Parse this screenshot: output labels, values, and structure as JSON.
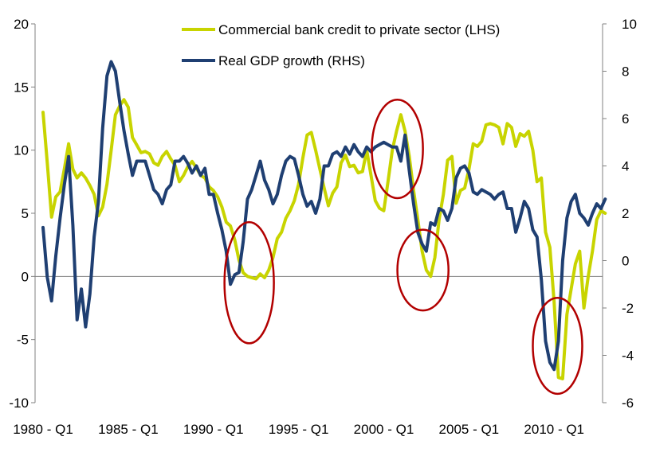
{
  "chart_data": {
    "type": "line",
    "title": "",
    "xlabel": "",
    "ylabel_left": "",
    "ylabel_right": "",
    "x_start_year": 1980,
    "x_end_year": 2012.5,
    "x_tick_labels": [
      {
        "year": 1980,
        "label": "1980 - Q1"
      },
      {
        "year": 1985,
        "label": "1985 - Q1"
      },
      {
        "year": 1990,
        "label": "1990 - Q1"
      },
      {
        "year": 1995,
        "label": "1995 - Q1"
      },
      {
        "year": 2000,
        "label": "2000 - Q1"
      },
      {
        "year": 2005,
        "label": "2005 - Q1"
      },
      {
        "year": 2010,
        "label": "2010 - Q1"
      }
    ],
    "y_left": {
      "min": -10,
      "max": 20,
      "ticks": [
        "20",
        "15",
        "10",
        "5",
        "0",
        "-5",
        "-10"
      ],
      "tick_values": [
        20,
        15,
        10,
        5,
        0,
        -5,
        -10
      ]
    },
    "y_right": {
      "min": -6,
      "max": 10,
      "ticks": [
        "10",
        "8",
        "6",
        "4",
        "2",
        "0",
        "-2",
        "-4",
        "-6"
      ],
      "tick_values": [
        10,
        8,
        6,
        4,
        2,
        0,
        -2,
        -4,
        -6
      ]
    },
    "legend": {
      "position": "top-center"
    },
    "series": [
      {
        "name": "Commercial bank credit to private sector (LHS)",
        "axis": "left",
        "color": "#c8d400",
        "points": [
          [
            1980.0,
            13.0
          ],
          [
            1980.25,
            9.0
          ],
          [
            1980.5,
            4.7
          ],
          [
            1980.75,
            6.3
          ],
          [
            1981.0,
            6.7
          ],
          [
            1981.25,
            8.5
          ],
          [
            1981.5,
            10.5
          ],
          [
            1981.75,
            8.5
          ],
          [
            1982.0,
            7.8
          ],
          [
            1982.25,
            8.2
          ],
          [
            1982.5,
            7.8
          ],
          [
            1982.75,
            7.2
          ],
          [
            1983.0,
            6.5
          ],
          [
            1983.25,
            4.8
          ],
          [
            1983.5,
            5.5
          ],
          [
            1983.75,
            7.3
          ],
          [
            1984.0,
            10.0
          ],
          [
            1984.25,
            12.8
          ],
          [
            1984.5,
            13.5
          ],
          [
            1984.75,
            14.0
          ],
          [
            1985.0,
            13.4
          ],
          [
            1985.25,
            11.0
          ],
          [
            1985.5,
            10.4
          ],
          [
            1985.75,
            9.8
          ],
          [
            1986.0,
            9.9
          ],
          [
            1986.25,
            9.7
          ],
          [
            1986.5,
            9.0
          ],
          [
            1986.75,
            8.8
          ],
          [
            1987.0,
            9.5
          ],
          [
            1987.25,
            9.9
          ],
          [
            1987.5,
            9.3
          ],
          [
            1987.75,
            8.8
          ],
          [
            1988.0,
            7.5
          ],
          [
            1988.25,
            8.0
          ],
          [
            1988.5,
            8.7
          ],
          [
            1988.75,
            9.1
          ],
          [
            1989.0,
            8.6
          ],
          [
            1989.25,
            8.0
          ],
          [
            1989.5,
            7.8
          ],
          [
            1989.75,
            7.1
          ],
          [
            1990.0,
            6.8
          ],
          [
            1990.25,
            6.3
          ],
          [
            1990.5,
            5.5
          ],
          [
            1990.75,
            4.3
          ],
          [
            1991.0,
            4.0
          ],
          [
            1991.25,
            2.9
          ],
          [
            1991.5,
            1.3
          ],
          [
            1991.75,
            0.3
          ],
          [
            1992.0,
            0.0
          ],
          [
            1992.25,
            -0.1
          ],
          [
            1992.5,
            -0.2
          ],
          [
            1992.75,
            0.2
          ],
          [
            1993.0,
            -0.1
          ],
          [
            1993.25,
            0.5
          ],
          [
            1993.5,
            1.5
          ],
          [
            1993.75,
            3.0
          ],
          [
            1994.0,
            3.5
          ],
          [
            1994.25,
            4.6
          ],
          [
            1994.5,
            5.2
          ],
          [
            1994.75,
            6.0
          ],
          [
            1995.0,
            7.3
          ],
          [
            1995.25,
            9.4
          ],
          [
            1995.5,
            11.2
          ],
          [
            1995.75,
            11.4
          ],
          [
            1996.0,
            10.0
          ],
          [
            1996.25,
            8.5
          ],
          [
            1996.5,
            7.0
          ],
          [
            1996.75,
            5.6
          ],
          [
            1997.0,
            6.6
          ],
          [
            1997.25,
            7.1
          ],
          [
            1997.5,
            9.0
          ],
          [
            1997.75,
            9.6
          ],
          [
            1998.0,
            8.7
          ],
          [
            1998.25,
            8.8
          ],
          [
            1998.5,
            8.2
          ],
          [
            1998.75,
            8.3
          ],
          [
            1999.0,
            10.0
          ],
          [
            1999.25,
            8.0
          ],
          [
            1999.5,
            6.0
          ],
          [
            1999.75,
            5.4
          ],
          [
            2000.0,
            5.2
          ],
          [
            2000.25,
            7.5
          ],
          [
            2000.5,
            10.0
          ],
          [
            2000.75,
            11.5
          ],
          [
            2001.0,
            12.8
          ],
          [
            2001.25,
            11.5
          ],
          [
            2001.5,
            9.5
          ],
          [
            2001.75,
            6.8
          ],
          [
            2002.0,
            4.5
          ],
          [
            2002.25,
            2.0
          ],
          [
            2002.5,
            0.5
          ],
          [
            2002.75,
            0.0
          ],
          [
            2003.0,
            1.5
          ],
          [
            2003.25,
            4.5
          ],
          [
            2003.5,
            6.5
          ],
          [
            2003.75,
            9.2
          ],
          [
            2004.0,
            9.5
          ],
          [
            2004.25,
            5.8
          ],
          [
            2004.5,
            6.8
          ],
          [
            2004.75,
            7.0
          ],
          [
            2005.0,
            8.5
          ],
          [
            2005.25,
            10.5
          ],
          [
            2005.5,
            10.3
          ],
          [
            2005.75,
            10.7
          ],
          [
            2006.0,
            12.0
          ],
          [
            2006.25,
            12.1
          ],
          [
            2006.5,
            12.0
          ],
          [
            2006.75,
            11.8
          ],
          [
            2007.0,
            10.5
          ],
          [
            2007.25,
            12.1
          ],
          [
            2007.5,
            11.8
          ],
          [
            2007.75,
            10.3
          ],
          [
            2008.0,
            11.3
          ],
          [
            2008.25,
            11.1
          ],
          [
            2008.5,
            11.5
          ],
          [
            2008.75,
            10.0
          ],
          [
            2009.0,
            7.5
          ],
          [
            2009.25,
            7.8
          ],
          [
            2009.5,
            3.5
          ],
          [
            2009.75,
            2.3
          ],
          [
            2010.0,
            -2.0
          ],
          [
            2010.25,
            -8.0
          ],
          [
            2010.5,
            -8.1
          ],
          [
            2010.75,
            -3.0
          ],
          [
            2011.0,
            -1.0
          ],
          [
            2011.25,
            1.0
          ],
          [
            2011.5,
            2.0
          ],
          [
            2011.75,
            -2.5
          ],
          [
            2012.0,
            0.0
          ],
          [
            2012.25,
            2.0
          ],
          [
            2012.5,
            4.5
          ],
          [
            2012.75,
            5.2
          ],
          [
            2013.0,
            5.0
          ]
        ]
      },
      {
        "name": "Real GDP growth (RHS)",
        "axis": "right",
        "color": "#1f3f72",
        "points": [
          [
            1980.0,
            1.4
          ],
          [
            1980.25,
            -0.7
          ],
          [
            1980.5,
            -1.7
          ],
          [
            1980.75,
            0.2
          ],
          [
            1981.0,
            1.8
          ],
          [
            1981.25,
            3.2
          ],
          [
            1981.5,
            4.4
          ],
          [
            1981.75,
            1.5
          ],
          [
            1982.0,
            -2.5
          ],
          [
            1982.25,
            -1.2
          ],
          [
            1982.5,
            -2.8
          ],
          [
            1982.75,
            -1.4
          ],
          [
            1983.0,
            1.0
          ],
          [
            1983.25,
            2.5
          ],
          [
            1983.5,
            5.6
          ],
          [
            1983.75,
            7.8
          ],
          [
            1984.0,
            8.4
          ],
          [
            1984.25,
            8.0
          ],
          [
            1984.5,
            6.7
          ],
          [
            1984.75,
            5.5
          ],
          [
            1985.0,
            4.5
          ],
          [
            1985.25,
            3.6
          ],
          [
            1985.5,
            4.2
          ],
          [
            1985.75,
            4.2
          ],
          [
            1986.0,
            4.2
          ],
          [
            1986.25,
            3.6
          ],
          [
            1986.5,
            3.0
          ],
          [
            1986.75,
            2.8
          ],
          [
            1987.0,
            2.4
          ],
          [
            1987.25,
            3.0
          ],
          [
            1987.5,
            3.2
          ],
          [
            1987.75,
            4.2
          ],
          [
            1988.0,
            4.2
          ],
          [
            1988.25,
            4.4
          ],
          [
            1988.5,
            4.1
          ],
          [
            1988.75,
            3.7
          ],
          [
            1989.0,
            4.0
          ],
          [
            1989.25,
            3.6
          ],
          [
            1989.5,
            3.9
          ],
          [
            1989.75,
            2.8
          ],
          [
            1990.0,
            2.8
          ],
          [
            1990.25,
            2.0
          ],
          [
            1990.5,
            1.3
          ],
          [
            1990.75,
            0.4
          ],
          [
            1991.0,
            -1.0
          ],
          [
            1991.25,
            -0.6
          ],
          [
            1991.5,
            -0.5
          ],
          [
            1991.75,
            0.8
          ],
          [
            1992.0,
            2.6
          ],
          [
            1992.25,
            3.0
          ],
          [
            1992.5,
            3.6
          ],
          [
            1992.75,
            4.2
          ],
          [
            1993.0,
            3.4
          ],
          [
            1993.25,
            3.0
          ],
          [
            1993.5,
            2.4
          ],
          [
            1993.75,
            2.8
          ],
          [
            1994.0,
            3.6
          ],
          [
            1994.25,
            4.2
          ],
          [
            1994.5,
            4.4
          ],
          [
            1994.75,
            4.3
          ],
          [
            1995.0,
            3.6
          ],
          [
            1995.25,
            2.8
          ],
          [
            1995.5,
            2.3
          ],
          [
            1995.75,
            2.5
          ],
          [
            1996.0,
            2.0
          ],
          [
            1996.25,
            2.6
          ],
          [
            1996.5,
            4.0
          ],
          [
            1996.75,
            4.0
          ],
          [
            1997.0,
            4.5
          ],
          [
            1997.25,
            4.6
          ],
          [
            1997.5,
            4.4
          ],
          [
            1997.75,
            4.8
          ],
          [
            1998.0,
            4.5
          ],
          [
            1998.25,
            4.9
          ],
          [
            1998.5,
            4.6
          ],
          [
            1998.75,
            4.4
          ],
          [
            1999.0,
            4.8
          ],
          [
            1999.25,
            4.6
          ],
          [
            1999.5,
            4.8
          ],
          [
            1999.75,
            4.9
          ],
          [
            2000.0,
            5.0
          ],
          [
            2000.25,
            4.9
          ],
          [
            2000.5,
            4.8
          ],
          [
            2000.75,
            4.8
          ],
          [
            2001.0,
            4.2
          ],
          [
            2001.25,
            5.3
          ],
          [
            2001.5,
            3.8
          ],
          [
            2001.75,
            2.4
          ],
          [
            2002.0,
            1.2
          ],
          [
            2002.25,
            0.7
          ],
          [
            2002.5,
            0.4
          ],
          [
            2002.75,
            1.6
          ],
          [
            2003.0,
            1.5
          ],
          [
            2003.25,
            2.2
          ],
          [
            2003.5,
            2.1
          ],
          [
            2003.75,
            1.7
          ],
          [
            2004.0,
            2.2
          ],
          [
            2004.25,
            3.5
          ],
          [
            2004.5,
            3.9
          ],
          [
            2004.75,
            4.0
          ],
          [
            2005.0,
            3.7
          ],
          [
            2005.25,
            2.9
          ],
          [
            2005.5,
            2.8
          ],
          [
            2005.75,
            3.0
          ],
          [
            2006.0,
            2.9
          ],
          [
            2006.25,
            2.8
          ],
          [
            2006.5,
            2.6
          ],
          [
            2006.75,
            2.8
          ],
          [
            2007.0,
            2.9
          ],
          [
            2007.25,
            2.2
          ],
          [
            2007.5,
            2.2
          ],
          [
            2007.75,
            1.2
          ],
          [
            2008.0,
            1.8
          ],
          [
            2008.25,
            2.5
          ],
          [
            2008.5,
            2.2
          ],
          [
            2008.75,
            1.3
          ],
          [
            2009.0,
            1.0
          ],
          [
            2009.25,
            -0.8
          ],
          [
            2009.5,
            -3.4
          ],
          [
            2009.75,
            -4.3
          ],
          [
            2010.0,
            -4.6
          ],
          [
            2010.25,
            -3.4
          ],
          [
            2010.5,
            0.0
          ],
          [
            2010.75,
            1.8
          ],
          [
            2011.0,
            2.5
          ],
          [
            2011.25,
            2.8
          ],
          [
            2011.5,
            2.0
          ],
          [
            2011.75,
            1.8
          ],
          [
            2012.0,
            1.5
          ],
          [
            2012.25,
            2.0
          ],
          [
            2012.5,
            2.4
          ],
          [
            2012.75,
            2.2
          ],
          [
            2013.0,
            2.6
          ]
        ]
      }
    ],
    "annotations": [
      {
        "type": "ellipse",
        "color": "#b20000",
        "cx": 1992.1,
        "cy_left": -0.5,
        "rx_years": 1.45,
        "ry_left": 4.8
      },
      {
        "type": "ellipse",
        "color": "#b20000",
        "cx": 2000.8,
        "cy_left": 10.1,
        "rx_years": 1.5,
        "ry_left": 3.9
      },
      {
        "type": "ellipse",
        "color": "#b20000",
        "cx": 2002.3,
        "cy_left": 0.5,
        "rx_years": 1.5,
        "ry_left": 3.2
      },
      {
        "type": "ellipse",
        "color": "#b20000",
        "cx": 2010.2,
        "cy_left": -5.5,
        "rx_years": 1.45,
        "ry_left": 3.8
      }
    ]
  }
}
